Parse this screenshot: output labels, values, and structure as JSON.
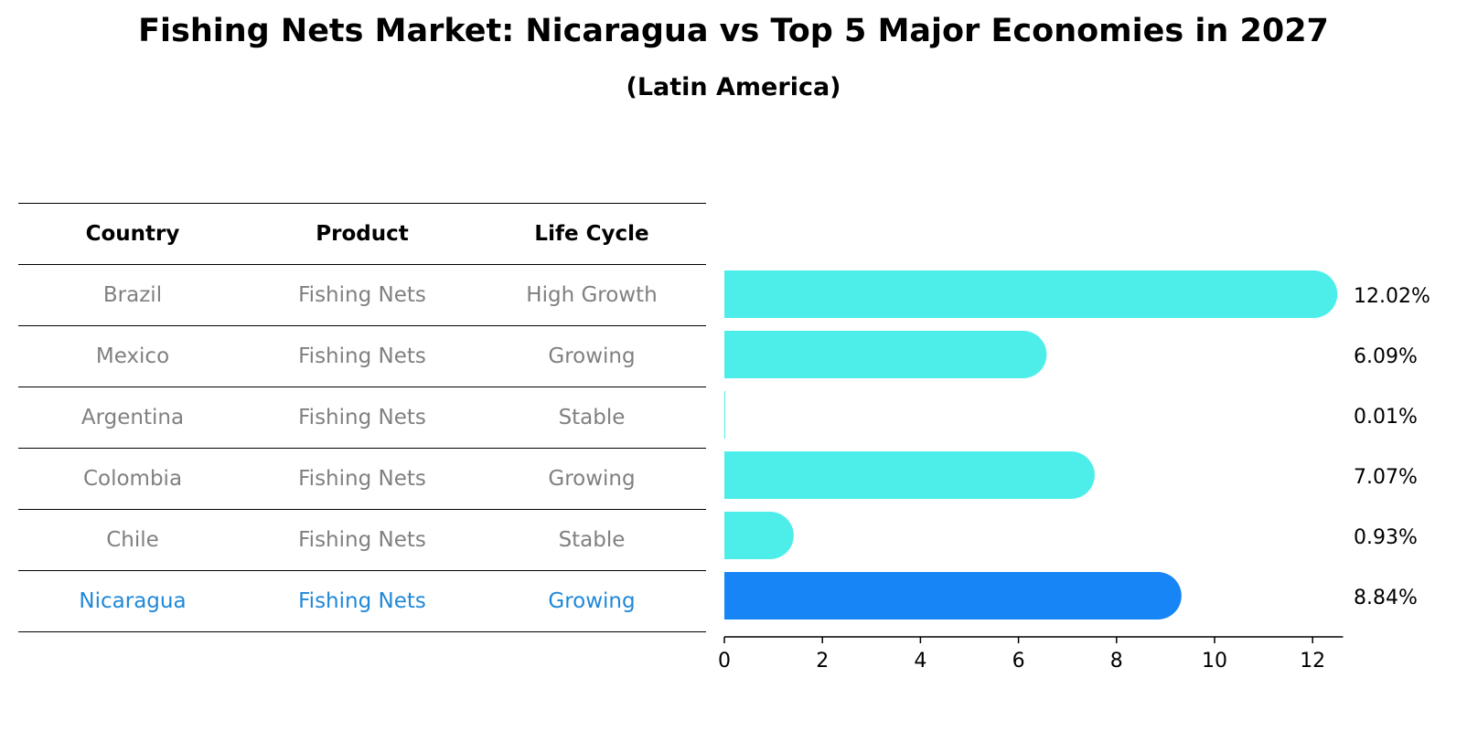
{
  "header": {
    "title": "Fishing Nets Market: Nicaragua vs Top 5 Major Economies in 2027",
    "subtitle": "(Latin America)"
  },
  "table": {
    "columns": [
      "Country",
      "Product",
      "Life Cycle"
    ],
    "rows": [
      {
        "country": "Brazil",
        "product": "Fishing Nets",
        "life_cycle": "High Growth"
      },
      {
        "country": "Mexico",
        "product": "Fishing Nets",
        "life_cycle": "Growing"
      },
      {
        "country": "Argentina",
        "product": "Fishing Nets",
        "life_cycle": "Stable"
      },
      {
        "country": "Colombia",
        "product": "Fishing Nets",
        "life_cycle": "Growing"
      },
      {
        "country": "Chile",
        "product": "Fishing Nets",
        "life_cycle": "Stable"
      },
      {
        "country": "Nicaragua",
        "product": "Fishing Nets",
        "life_cycle": "Growing"
      }
    ]
  },
  "chart_data": {
    "type": "bar",
    "orientation": "horizontal",
    "categories": [
      "Brazil",
      "Mexico",
      "Argentina",
      "Colombia",
      "Chile",
      "Nicaragua"
    ],
    "values": [
      12.02,
      6.09,
      0.01,
      7.07,
      0.93,
      8.84
    ],
    "data_labels": [
      "12.02%",
      "6.09%",
      "0.01%",
      "7.07%",
      "0.93%",
      "8.84%"
    ],
    "highlight_category": "Nicaragua",
    "xlim": [
      0,
      12.62
    ],
    "xticks": [
      0,
      2,
      4,
      6,
      8,
      10,
      12
    ],
    "grid": false,
    "colors": {
      "default_bar": "#4deeea",
      "highlight_bar": "#1785f5",
      "highlight_text": "#1f88d8",
      "muted_text": "#808080"
    }
  }
}
